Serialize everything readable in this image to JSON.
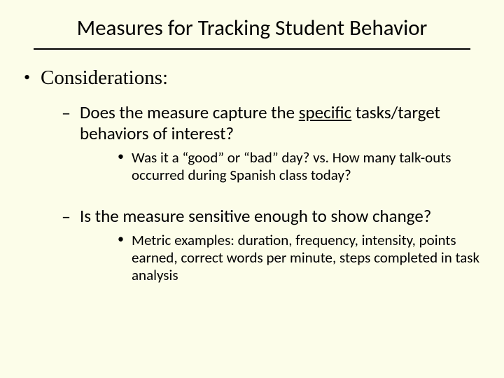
{
  "background_color": "#fcfde9",
  "title": "Measures for Tracking Student Behavior",
  "rule_color": "#000000",
  "bullets": {
    "l1": {
      "text": "Considerations:",
      "items": [
        {
          "pre": "Does the measure capture the ",
          "underlined": "specific",
          "post": " tasks/target behaviors of interest?",
          "sub": "Was it a “good” or “bad” day?   vs.   How many talk-outs occurred during Spanish class today?"
        },
        {
          "text": "Is the measure sensitive enough to show change?",
          "sub": "Metric examples:  duration, frequency, intensity, points earned, correct words per minute, steps completed in task analysis"
        }
      ]
    }
  },
  "fonts": {
    "title": {
      "family": "Calibri",
      "size_pt": 31,
      "weight": "normal"
    },
    "l1": {
      "family": "Times New Roman",
      "size_pt": 29
    },
    "l2": {
      "family": "Calibri",
      "size_pt": 25
    },
    "l3": {
      "family": "Calibri",
      "size_pt": 21
    }
  }
}
